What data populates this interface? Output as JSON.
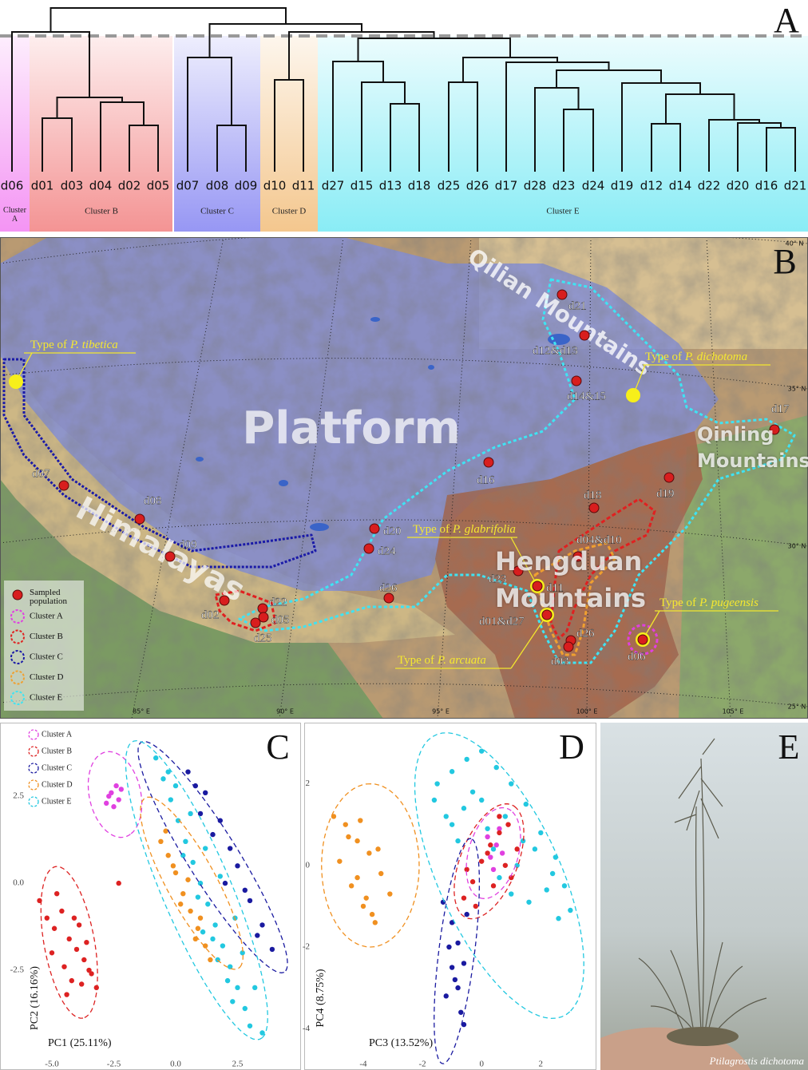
{
  "dendrogram": {
    "panel_label": "A",
    "leaves": [
      "d06",
      "d01",
      "d03",
      "d04",
      "d02",
      "d05",
      "d07",
      "d08",
      "d09",
      "d10",
      "d11",
      "d27",
      "d15",
      "d13",
      "d18",
      "d25",
      "d26",
      "d17",
      "d28",
      "d23",
      "d24",
      "d19",
      "d12",
      "d14",
      "d22",
      "d20",
      "d16",
      "d21"
    ],
    "clusters": [
      "Cluster A",
      "Cluster B",
      "Cluster C",
      "Cluster D",
      "Cluster E"
    ]
  },
  "map": {
    "panel_label": "B",
    "regions": [
      "Platform",
      "Himalayas",
      "Qilian Mountains",
      "Qinling Mountains",
      "Hengduan Mountains"
    ],
    "populations": [
      "d21",
      "d12&d13",
      "d14&15",
      "d17",
      "d16",
      "d19",
      "d18",
      "d07",
      "d08",
      "d09",
      "d20",
      "d24",
      "d04&d10",
      "d23",
      "d11",
      "d01&d27",
      "d26",
      "d03",
      "d06",
      "d26",
      "d02",
      "d22",
      "d05",
      "d25"
    ],
    "types": [
      {
        "prefix": "Type of",
        "species": "P. tibetica"
      },
      {
        "prefix": "Type of",
        "species": "P. dichotoma"
      },
      {
        "prefix": "Type of",
        "species": "P. glabrifolia"
      },
      {
        "prefix": "Type of",
        "species": "P. pugeensis"
      },
      {
        "prefix": "Type of",
        "species": "P. arcuata"
      }
    ],
    "legend": [
      "Sampled population",
      "Cluster A",
      "Cluster B",
      "Cluster C",
      "Cluster D",
      "Cluster E"
    ],
    "graticule_labels": [
      "40° N",
      "35° N",
      "30° N",
      "25° N",
      "85° E",
      "90° E",
      "95° E",
      "100° E",
      "105° E"
    ]
  },
  "chart_data": [
    {
      "type": "scatter",
      "panel_label": "C",
      "xlabel": "PC1 (25.11%)",
      "ylabel": "PC2 (16.16%)",
      "xlim": [
        -6.0,
        5.0
      ],
      "ylim": [
        -5.0,
        4.5
      ],
      "xticks": [
        {
          "value": -5,
          "label": "-5.0"
        },
        -2.5,
        {
          "value": 0,
          "label": "0.0"
        },
        2.5
      ],
      "yticks": [
        -2.5,
        {
          "value": 0,
          "label": "0.0"
        },
        2.5
      ],
      "grid": false,
      "legend": "upper left",
      "series": [
        {
          "name": "Cluster A",
          "color": "#e040e0",
          "x": [
            -2.6,
            -2.3,
            -2.8,
            -2.2,
            -2.5,
            -2.4,
            -2.7
          ],
          "values": [
            2.6,
            2.4,
            2.3,
            2.7,
            2.2,
            2.8,
            2.5
          ],
          "ellipse": {
            "cx": -2.45,
            "cy": 2.55,
            "rx": 1.3,
            "ry": 1.0,
            "angle": -60
          }
        },
        {
          "name": "Cluster B",
          "color": "#dd2222",
          "x": [
            -5.5,
            -5.2,
            -4.9,
            -4.6,
            -4.3,
            -4.0,
            -3.7,
            -3.4,
            -3.2,
            -5.0,
            -4.5,
            -4.2,
            -3.9,
            -3.6,
            -4.8,
            -4.4,
            -3.8,
            -4.1,
            -3.5,
            -2.3
          ],
          "values": [
            -0.5,
            -1.0,
            -1.3,
            -0.8,
            -1.6,
            -1.9,
            -2.2,
            -2.6,
            -3.0,
            -2.0,
            -2.4,
            -2.8,
            -1.2,
            -1.7,
            -0.3,
            -3.2,
            -2.9,
            -1.0,
            -2.5,
            0.0
          ],
          "ellipse": {
            "cx": -4.3,
            "cy": -1.7,
            "rx": 2.25,
            "ry": 1.0,
            "angle": -74
          }
        },
        {
          "name": "Cluster C",
          "color": "#1a1aa0",
          "x": [
            0.5,
            1.2,
            1.8,
            2.5,
            3.0,
            3.5,
            3.9,
            1.0,
            2.2,
            2.8,
            0.8,
            1.5,
            3.3,
            2.0
          ],
          "values": [
            3.2,
            2.6,
            1.8,
            0.5,
            -0.5,
            -1.2,
            -1.9,
            2.0,
            1.0,
            -0.2,
            2.8,
            1.4,
            -1.5,
            0.0
          ],
          "ellipse": {
            "cx": 1.5,
            "cy": 0.75,
            "rx": 4.4,
            "ry": 0.9,
            "angle": -48
          }
        },
        {
          "name": "Cluster D",
          "color": "#f09020",
          "x": [
            -0.6,
            -0.3,
            0.0,
            0.3,
            0.6,
            0.9,
            1.2,
            -0.4,
            0.2,
            0.5,
            1.0,
            -0.1,
            0.8,
            1.4
          ],
          "values": [
            1.2,
            0.8,
            0.3,
            -0.3,
            -0.8,
            -1.3,
            -1.8,
            1.5,
            -0.6,
            0.1,
            -1.0,
            0.5,
            -1.6,
            -2.2
          ],
          "ellipse": {
            "cx": 0.65,
            "cy": 0.0,
            "rx": 3.1,
            "ry": 0.9,
            "angle": -51
          }
        },
        {
          "name": "Cluster E",
          "color": "#22c8e0",
          "x": [
            -0.8,
            -0.5,
            -0.2,
            0.1,
            0.4,
            0.7,
            1.0,
            1.3,
            1.6,
            1.9,
            2.2,
            2.5,
            2.8,
            3.0,
            0.0,
            0.6,
            1.2,
            1.8,
            2.4,
            -0.3,
            0.9,
            1.5,
            2.1,
            2.7,
            0.3,
            1.1,
            1.7,
            2.3,
            3.2,
            3.5
          ],
          "values": [
            3.6,
            3.0,
            2.4,
            1.8,
            1.2,
            0.6,
            0.0,
            -0.6,
            -1.2,
            -1.8,
            -2.4,
            -3.0,
            -3.6,
            -4.1,
            2.8,
            2.0,
            1.0,
            0.2,
            -1.0,
            3.2,
            -0.4,
            -1.6,
            -2.8,
            -2.0,
            0.8,
            -1.4,
            -2.2,
            -3.4,
            -3.0,
            -4.3
          ],
          "ellipse": {
            "cx": 0.85,
            "cy": -0.2,
            "rx": 5.0,
            "ry": 1.3,
            "angle": -58
          }
        }
      ]
    },
    {
      "type": "scatter",
      "panel_label": "D",
      "xlabel": "PC3 (13.52%)",
      "ylabel": "PC4 (8.75%)",
      "xlim": [
        -5.7,
        3.8
      ],
      "ylim": [
        -4.7,
        3.4
      ],
      "xticks": [
        -4,
        -2,
        0,
        2
      ],
      "yticks": [
        -4,
        -2,
        0,
        2
      ],
      "grid": false,
      "series": [
        {
          "name": "Cluster A",
          "color": "#e040e0",
          "x": [
            0.2,
            0.5,
            0.7,
            0.4,
            0.6,
            0.3
          ],
          "values": [
            0.7,
            0.5,
            0.3,
            -0.1,
            0.9,
            0.2
          ],
          "ellipse": {
            "cx": 0.4,
            "cy": 0.3,
            "rx": 1.2,
            "ry": 0.8,
            "angle": 60
          }
        },
        {
          "name": "Cluster B",
          "color": "#dd2222",
          "x": [
            -0.6,
            -0.3,
            0.0,
            0.3,
            0.6,
            0.9,
            1.2,
            -0.2,
            0.4,
            0.8,
            1.0,
            -0.5,
            0.2,
            0.6
          ],
          "values": [
            -0.8,
            -0.4,
            0.1,
            0.5,
            0.8,
            1.0,
            0.4,
            -1.0,
            -0.5,
            0.0,
            -0.3,
            -0.1,
            0.3,
            1.2
          ],
          "ellipse": {
            "cx": 0.25,
            "cy": 0.1,
            "rx": 1.6,
            "ry": 0.9,
            "angle": 55
          }
        },
        {
          "name": "Cluster C",
          "color": "#1a1aa0",
          "x": [
            -1.3,
            -1.0,
            -0.8,
            -0.6,
            -0.9,
            -1.2,
            -0.7,
            -1.1,
            -0.5,
            -0.8,
            -1.0,
            -0.6
          ],
          "values": [
            -0.9,
            -1.4,
            -1.9,
            -2.4,
            -2.8,
            -3.2,
            -3.6,
            -2.0,
            -1.2,
            -3.0,
            -2.5,
            -3.9
          ],
          "ellipse": {
            "cx": -0.84,
            "cy": -2.1,
            "rx": 2.8,
            "ry": 0.6,
            "angle": 80
          }
        },
        {
          "name": "Cluster D",
          "color": "#f09020",
          "x": [
            -5.0,
            -4.6,
            -4.2,
            -3.8,
            -3.4,
            -3.1,
            -4.4,
            -4.0,
            -3.6,
            -4.8,
            -4.2,
            -3.9,
            -3.5,
            -4.5,
            -3.7,
            -4.1
          ],
          "values": [
            1.2,
            1.0,
            0.6,
            0.3,
            -0.2,
            -0.7,
            -0.5,
            -1.0,
            -1.4,
            0.1,
            -0.3,
            -0.8,
            0.4,
            0.7,
            -1.2,
            1.1
          ],
          "ellipse": {
            "cx": -3.76,
            "cy": 0.0,
            "rx": 2.0,
            "ry": 1.65,
            "angle": 90
          }
        },
        {
          "name": "Cluster E",
          "color": "#22c8e0",
          "x": [
            -1.5,
            -1.0,
            -0.5,
            0.0,
            0.5,
            1.0,
            1.5,
            2.0,
            2.5,
            -1.2,
            -0.3,
            0.8,
            1.8,
            2.8,
            -0.8,
            0.2,
            1.2,
            2.2,
            -1.6,
            0.6,
            1.6,
            2.6,
            -0.6,
            0.4,
            1.4,
            2.4,
            3.0,
            -1.0,
            0.0,
            1.0
          ],
          "values": [
            2.0,
            2.3,
            2.6,
            2.8,
            2.4,
            2.0,
            1.5,
            0.8,
            0.2,
            1.2,
            1.8,
            1.2,
            0.4,
            -0.5,
            0.6,
            0.9,
            0.0,
            -0.6,
            1.6,
            -0.3,
            -0.9,
            -1.3,
            1.4,
            0.4,
            0.6,
            -0.2,
            -1.1,
            1.0,
            1.6,
            -0.7
          ],
          "ellipse": {
            "cx": 0.6,
            "cy": -0.25,
            "rx": 4.1,
            "ry": 1.9,
            "angle": -54
          }
        }
      ]
    }
  ],
  "photo": {
    "panel_label": "E",
    "caption": "Ptilagrostis dichotoma"
  }
}
